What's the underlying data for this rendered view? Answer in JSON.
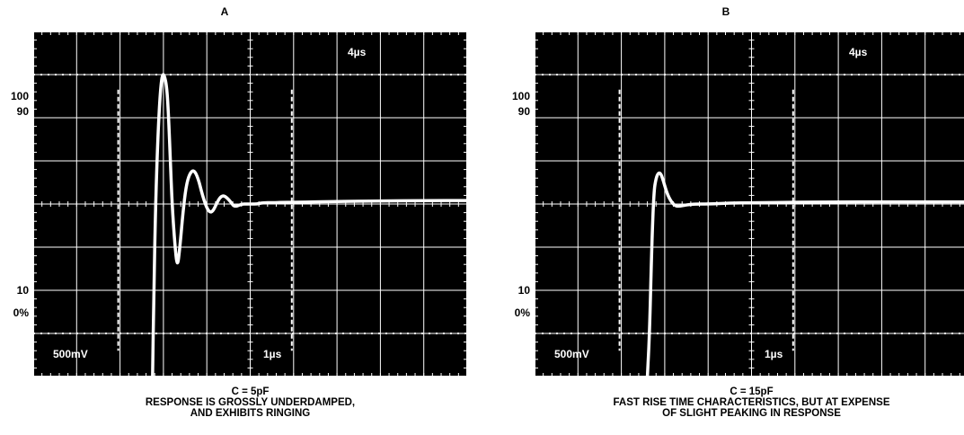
{
  "panels": [
    {
      "label": "A",
      "y_labels": [
        "100",
        "90",
        "10",
        "0%"
      ],
      "time_label": "4µs",
      "volt_div": "500mV",
      "time_div": "1µs",
      "caption": [
        "C = 5pF",
        "RESPONSE IS GROSSLY UNDERDAMPED,",
        "AND EXHIBITS RINGING"
      ]
    },
    {
      "label": "B",
      "y_labels": [
        "100",
        "90",
        "10",
        "0%"
      ],
      "time_label": "4µs",
      "volt_div": "500mV",
      "time_div": "1µs",
      "caption": [
        "C = 15pF",
        "FAST RISE TIME CHARACTERISTICS, BUT AT EXPENSE",
        "OF SLIGHT PEAKING IN RESPONSE"
      ]
    }
  ],
  "chart_data": [
    {
      "type": "line",
      "title": "A",
      "xlabel": "1µs",
      "ylabel": "500mV",
      "xlim": [
        0,
        10
      ],
      "ylim": [
        -4,
        4
      ],
      "grid": true,
      "series": [
        {
          "x": [
            2.75,
            2.78,
            2.82,
            2.87,
            2.92,
            2.97,
            3.02,
            3.08,
            3.12,
            3.16,
            3.2,
            3.26,
            3.32,
            3.38,
            3.45,
            3.52,
            3.6,
            3.7,
            3.8,
            3.9,
            4.0,
            4.08,
            4.15,
            4.22,
            4.3,
            4.38,
            4.46,
            4.55,
            4.62,
            4.7,
            4.8,
            4.92,
            5.05,
            5.15,
            5.25,
            5.35,
            5.45,
            5.58,
            5.7,
            6.0,
            7.0,
            8.0,
            9.0,
            10.0
          ],
          "y": [
            -4.0,
            -2.0,
            0.0,
            1.5,
            2.5,
            3.0,
            3.0,
            2.7,
            2.0,
            1.0,
            0.0,
            -0.9,
            -1.5,
            -1.0,
            -0.2,
            0.4,
            0.7,
            0.8,
            0.6,
            0.2,
            -0.1,
            -0.2,
            -0.15,
            0.0,
            0.15,
            0.2,
            0.15,
            0.05,
            -0.05,
            -0.05,
            0.0,
            0.0,
            0.0,
            0.0,
            0.02,
            0.03,
            0.03,
            0.03,
            0.04,
            0.04,
            0.06,
            0.07,
            0.08,
            0.08
          ]
        }
      ]
    },
    {
      "type": "line",
      "title": "B",
      "xlabel": "1µs",
      "ylabel": "500mV",
      "xlim": [
        0,
        10
      ],
      "ylim": [
        -4,
        4
      ],
      "grid": true,
      "series": [
        {
          "x": [
            2.6,
            2.65,
            2.7,
            2.75,
            2.8,
            2.85,
            2.9,
            2.95,
            3.05,
            3.15,
            3.25,
            3.35,
            3.5,
            3.7,
            4.0,
            4.5,
            5.0,
            6.0,
            7.0,
            8.0,
            9.0,
            10.0
          ],
          "y": [
            -4.0,
            -3.0,
            -1.0,
            0.3,
            0.6,
            0.72,
            0.72,
            0.6,
            0.25,
            0.05,
            -0.05,
            -0.05,
            -0.02,
            0.0,
            0.0,
            0.02,
            0.03,
            0.04,
            0.05,
            0.05,
            0.05,
            0.05
          ]
        }
      ]
    }
  ]
}
